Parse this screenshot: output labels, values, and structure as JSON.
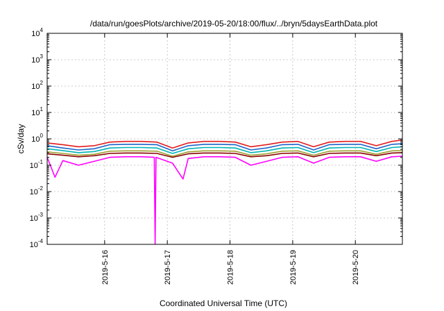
{
  "chart_data": {
    "type": "line",
    "title": "/data/run/goesPlots/archive/2019-05-20/18:00/flux/../bryn/5daysEarthData.plot",
    "xlabel": "Coordinated Universal Time (UTC)",
    "ylabel": "cSv/day",
    "y_scale": "log",
    "ylim": [
      0.0001,
      10000
    ],
    "xlim": [
      "2019-05-15T02:00",
      "2019-05-20T18:00"
    ],
    "grid": true,
    "x_ticks": [
      {
        "date": "2019-05-16",
        "label": "2019-5-16"
      },
      {
        "date": "2019-05-17",
        "label": "2019-5-17"
      },
      {
        "date": "2019-05-18",
        "label": "2019-5-18"
      },
      {
        "date": "2019-05-19",
        "label": "2019-5-19"
      },
      {
        "date": "2019-05-20",
        "label": "2019-5-20"
      }
    ],
    "y_ticks": [
      {
        "value": 0.0001,
        "base": "10",
        "exp": "-4"
      },
      {
        "value": 0.001,
        "base": "10",
        "exp": "-3"
      },
      {
        "value": 0.01,
        "base": "10",
        "exp": "-2"
      },
      {
        "value": 0.1,
        "base": "10",
        "exp": "-1"
      },
      {
        "value": 1,
        "base": "10",
        "exp": "0"
      },
      {
        "value": 10,
        "base": "10",
        "exp": "1"
      },
      {
        "value": 100,
        "base": "10",
        "exp": "2"
      },
      {
        "value": 1000,
        "base": "10",
        "exp": "3"
      },
      {
        "value": 10000,
        "base": "10",
        "exp": "4"
      }
    ],
    "series": [
      {
        "color": "#e41a1c",
        "x": [
          "2019-05-15T02:00",
          "2019-05-15T08:00",
          "2019-05-15T14:00",
          "2019-05-15T20:00",
          "2019-05-16T02:00",
          "2019-05-16T08:00",
          "2019-05-16T14:00",
          "2019-05-16T20:00",
          "2019-05-17T02:00",
          "2019-05-17T08:00",
          "2019-05-17T14:00",
          "2019-05-17T20:00",
          "2019-05-18T02:00",
          "2019-05-18T08:00",
          "2019-05-18T14:00",
          "2019-05-18T20:00",
          "2019-05-19T02:00",
          "2019-05-19T08:00",
          "2019-05-19T14:00",
          "2019-05-19T20:00",
          "2019-05-20T02:00",
          "2019-05-20T08:00",
          "2019-05-20T14:00",
          "2019-05-20T18:00"
        ],
        "y": [
          0.7,
          0.6,
          0.5,
          0.55,
          0.75,
          0.8,
          0.8,
          0.75,
          0.45,
          0.7,
          0.8,
          0.8,
          0.75,
          0.5,
          0.6,
          0.75,
          0.8,
          0.5,
          0.75,
          0.8,
          0.8,
          0.55,
          0.8,
          0.9
        ]
      },
      {
        "color": "#1e64c8",
        "x": [
          "2019-05-15T02:00",
          "2019-05-15T08:00",
          "2019-05-15T14:00",
          "2019-05-15T20:00",
          "2019-05-16T02:00",
          "2019-05-16T08:00",
          "2019-05-16T14:00",
          "2019-05-16T20:00",
          "2019-05-17T02:00",
          "2019-05-17T08:00",
          "2019-05-17T14:00",
          "2019-05-17T20:00",
          "2019-05-18T02:00",
          "2019-05-18T08:00",
          "2019-05-18T14:00",
          "2019-05-18T20:00",
          "2019-05-19T02:00",
          "2019-05-19T08:00",
          "2019-05-19T14:00",
          "2019-05-19T20:00",
          "2019-05-20T02:00",
          "2019-05-20T08:00",
          "2019-05-20T14:00",
          "2019-05-20T18:00"
        ],
        "y": [
          0.55,
          0.45,
          0.38,
          0.42,
          0.6,
          0.62,
          0.62,
          0.6,
          0.35,
          0.55,
          0.62,
          0.62,
          0.6,
          0.38,
          0.45,
          0.6,
          0.62,
          0.38,
          0.6,
          0.62,
          0.62,
          0.42,
          0.62,
          0.65
        ]
      },
      {
        "color": "#00b4b4",
        "x": [
          "2019-05-15T02:00",
          "2019-05-15T08:00",
          "2019-05-15T14:00",
          "2019-05-15T20:00",
          "2019-05-16T02:00",
          "2019-05-16T08:00",
          "2019-05-16T14:00",
          "2019-05-16T20:00",
          "2019-05-17T02:00",
          "2019-05-17T08:00",
          "2019-05-17T14:00",
          "2019-05-17T20:00",
          "2019-05-18T02:00",
          "2019-05-18T08:00",
          "2019-05-18T14:00",
          "2019-05-18T20:00",
          "2019-05-19T02:00",
          "2019-05-19T08:00",
          "2019-05-19T14:00",
          "2019-05-19T20:00",
          "2019-05-20T02:00",
          "2019-05-20T08:00",
          "2019-05-20T14:00",
          "2019-05-20T18:00"
        ],
        "y": [
          0.42,
          0.36,
          0.3,
          0.33,
          0.45,
          0.47,
          0.47,
          0.45,
          0.28,
          0.42,
          0.47,
          0.47,
          0.45,
          0.3,
          0.35,
          0.45,
          0.47,
          0.3,
          0.45,
          0.47,
          0.47,
          0.33,
          0.47,
          0.5
        ]
      },
      {
        "color": "#a0a032",
        "x": [
          "2019-05-15T02:00",
          "2019-05-15T08:00",
          "2019-05-15T14:00",
          "2019-05-15T20:00",
          "2019-05-16T02:00",
          "2019-05-16T08:00",
          "2019-05-16T14:00",
          "2019-05-16T20:00",
          "2019-05-17T02:00",
          "2019-05-17T08:00",
          "2019-05-17T14:00",
          "2019-05-17T20:00",
          "2019-05-18T02:00",
          "2019-05-18T08:00",
          "2019-05-18T14:00",
          "2019-05-18T20:00",
          "2019-05-19T02:00",
          "2019-05-19T08:00",
          "2019-05-19T14:00",
          "2019-05-19T20:00",
          "2019-05-20T02:00",
          "2019-05-20T08:00",
          "2019-05-20T14:00",
          "2019-05-20T18:00"
        ],
        "y": [
          0.32,
          0.28,
          0.24,
          0.26,
          0.34,
          0.35,
          0.35,
          0.34,
          0.22,
          0.32,
          0.35,
          0.35,
          0.34,
          0.24,
          0.27,
          0.34,
          0.35,
          0.24,
          0.34,
          0.35,
          0.35,
          0.26,
          0.35,
          0.36
        ]
      },
      {
        "color": "#8b0000",
        "x": [
          "2019-05-15T02:00",
          "2019-05-15T08:00",
          "2019-05-15T14:00",
          "2019-05-15T20:00",
          "2019-05-16T02:00",
          "2019-05-16T08:00",
          "2019-05-16T14:00",
          "2019-05-16T20:00",
          "2019-05-17T02:00",
          "2019-05-17T08:00",
          "2019-05-17T14:00",
          "2019-05-17T20:00",
          "2019-05-18T02:00",
          "2019-05-18T08:00",
          "2019-05-18T14:00",
          "2019-05-18T20:00",
          "2019-05-19T02:00",
          "2019-05-19T08:00",
          "2019-05-19T14:00",
          "2019-05-19T20:00",
          "2019-05-20T02:00",
          "2019-05-20T08:00",
          "2019-05-20T14:00",
          "2019-05-20T18:00"
        ],
        "y": [
          0.27,
          0.24,
          0.21,
          0.23,
          0.28,
          0.29,
          0.29,
          0.28,
          0.2,
          0.27,
          0.29,
          0.29,
          0.28,
          0.21,
          0.23,
          0.28,
          0.29,
          0.21,
          0.28,
          0.29,
          0.29,
          0.23,
          0.29,
          0.3
        ]
      },
      {
        "color": "#ff00ff",
        "x": [
          "2019-05-15T02:00",
          "2019-05-15T05:00",
          "2019-05-15T08:00",
          "2019-05-15T14:00",
          "2019-05-15T20:00",
          "2019-05-16T02:00",
          "2019-05-16T08:00",
          "2019-05-16T14:00",
          "2019-05-16T19:00",
          "2019-05-16T19:20",
          "2019-05-16T19:40",
          "2019-05-17T02:00",
          "2019-05-17T06:00",
          "2019-05-17T08:00",
          "2019-05-17T14:00",
          "2019-05-17T20:00",
          "2019-05-18T02:00",
          "2019-05-18T08:00",
          "2019-05-18T14:00",
          "2019-05-18T20:00",
          "2019-05-19T02:00",
          "2019-05-19T08:00",
          "2019-05-19T14:00",
          "2019-05-19T20:00",
          "2019-05-20T02:00",
          "2019-05-20T08:00",
          "2019-05-20T14:00",
          "2019-05-20T18:00"
        ],
        "y": [
          0.2,
          0.035,
          0.15,
          0.1,
          0.14,
          0.2,
          0.21,
          0.21,
          0.2,
          0.0001,
          0.2,
          0.12,
          0.03,
          0.18,
          0.21,
          0.21,
          0.2,
          0.1,
          0.14,
          0.2,
          0.21,
          0.12,
          0.2,
          0.21,
          0.21,
          0.14,
          0.21,
          0.22
        ]
      }
    ]
  }
}
